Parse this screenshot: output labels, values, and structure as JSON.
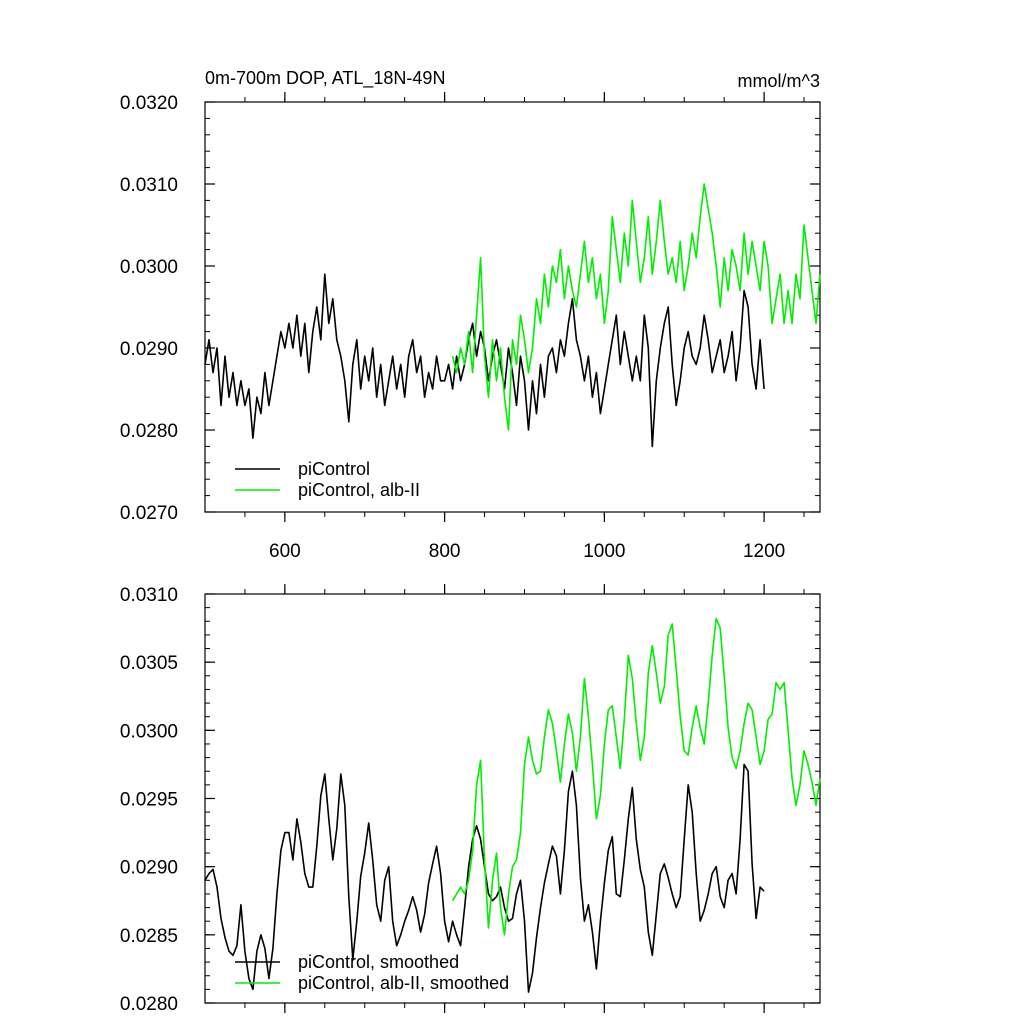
{
  "figure": {
    "title_left": "0m-700m DOP, ATL_18N-49N",
    "title_right": "mmol/m^3"
  },
  "chart_data": [
    {
      "type": "line",
      "title": "0m-700m DOP, ATL_18N-49N",
      "units": "mmol/m^3",
      "xlim": [
        500,
        1270
      ],
      "ylim": [
        0.027,
        0.032
      ],
      "x_ticks": [
        600,
        800,
        1000,
        1200
      ],
      "x_tick_labels": [
        "600",
        "800",
        "1000",
        "1200"
      ],
      "y_ticks": [
        0.027,
        0.028,
        0.029,
        0.03,
        0.031,
        0.032
      ],
      "y_tick_labels": [
        "0.0270",
        "0.0280",
        "0.0290",
        "0.0300",
        "0.0310",
        "0.0320"
      ],
      "legend_position": "bottom-left",
      "grid": false,
      "series": [
        {
          "name": "piControl",
          "color": "#000000",
          "x": [
            500,
            505,
            510,
            515,
            520,
            525,
            530,
            535,
            540,
            545,
            550,
            555,
            560,
            565,
            570,
            575,
            580,
            585,
            590,
            595,
            600,
            605,
            610,
            615,
            620,
            625,
            630,
            635,
            640,
            645,
            650,
            655,
            660,
            665,
            670,
            675,
            680,
            685,
            690,
            695,
            700,
            705,
            710,
            715,
            720,
            725,
            730,
            735,
            740,
            745,
            750,
            755,
            760,
            765,
            770,
            775,
            780,
            785,
            790,
            795,
            800,
            805,
            810,
            815,
            820,
            825,
            830,
            835,
            840,
            845,
            850,
            855,
            860,
            865,
            870,
            875,
            880,
            885,
            890,
            895,
            900,
            905,
            910,
            915,
            920,
            925,
            930,
            935,
            940,
            945,
            950,
            955,
            960,
            965,
            970,
            975,
            980,
            985,
            990,
            995,
            1000,
            1005,
            1010,
            1015,
            1020,
            1025,
            1030,
            1035,
            1040,
            1045,
            1050,
            1055,
            1060,
            1065,
            1070,
            1075,
            1080,
            1085,
            1090,
            1095,
            1100,
            1105,
            1110,
            1115,
            1120,
            1125,
            1130,
            1135,
            1140,
            1145,
            1150,
            1155,
            1160,
            1165,
            1170,
            1175,
            1180,
            1185,
            1190,
            1195,
            1200
          ],
          "y": [
            0.0288,
            0.0291,
            0.0287,
            0.029,
            0.0283,
            0.0289,
            0.0284,
            0.0287,
            0.0283,
            0.0286,
            0.0283,
            0.0285,
            0.0279,
            0.0284,
            0.0282,
            0.0287,
            0.0283,
            0.0286,
            0.0289,
            0.0292,
            0.029,
            0.0293,
            0.029,
            0.0294,
            0.0289,
            0.0293,
            0.0287,
            0.0292,
            0.0295,
            0.0291,
            0.0299,
            0.0293,
            0.0296,
            0.0291,
            0.0289,
            0.0286,
            0.0281,
            0.0288,
            0.0291,
            0.0285,
            0.0289,
            0.0286,
            0.029,
            0.0284,
            0.0288,
            0.0283,
            0.0286,
            0.0289,
            0.0285,
            0.0288,
            0.0284,
            0.0289,
            0.0291,
            0.0287,
            0.0289,
            0.0284,
            0.0287,
            0.0285,
            0.0289,
            0.0286,
            0.0286,
            0.0288,
            0.0285,
            0.0289,
            0.0286,
            0.0288,
            0.0291,
            0.0293,
            0.0289,
            0.0292,
            0.029,
            0.0286,
            0.0289,
            0.0291,
            0.0288,
            0.0285,
            0.029,
            0.0287,
            0.0283,
            0.0289,
            0.0286,
            0.028,
            0.0286,
            0.0282,
            0.0288,
            0.0284,
            0.0289,
            0.029,
            0.0287,
            0.0291,
            0.0289,
            0.0293,
            0.0296,
            0.0291,
            0.0289,
            0.0286,
            0.0289,
            0.0284,
            0.0287,
            0.0282,
            0.0285,
            0.0288,
            0.0291,
            0.0294,
            0.0288,
            0.0292,
            0.0289,
            0.0286,
            0.0289,
            0.0286,
            0.0294,
            0.029,
            0.0278,
            0.0286,
            0.029,
            0.0293,
            0.0295,
            0.0288,
            0.0283,
            0.0286,
            0.029,
            0.0292,
            0.0289,
            0.0288,
            0.029,
            0.0294,
            0.0291,
            0.0287,
            0.0289,
            0.0291,
            0.0287,
            0.0289,
            0.0292,
            0.0286,
            0.029,
            0.0297,
            0.0295,
            0.0288,
            0.0285,
            0.0291,
            0.0285
          ]
        },
        {
          "name": "piControl, alb-II",
          "color": "#00ee00",
          "x": [
            810,
            815,
            820,
            825,
            830,
            835,
            840,
            845,
            850,
            855,
            860,
            865,
            870,
            875,
            880,
            885,
            890,
            895,
            900,
            905,
            910,
            915,
            920,
            925,
            930,
            935,
            940,
            945,
            950,
            955,
            960,
            965,
            970,
            975,
            980,
            985,
            990,
            995,
            1000,
            1005,
            1010,
            1015,
            1020,
            1025,
            1030,
            1035,
            1040,
            1045,
            1050,
            1055,
            1060,
            1065,
            1070,
            1075,
            1080,
            1085,
            1090,
            1095,
            1100,
            1105,
            1110,
            1115,
            1120,
            1125,
            1130,
            1135,
            1140,
            1145,
            1150,
            1155,
            1160,
            1165,
            1170,
            1175,
            1180,
            1185,
            1190,
            1195,
            1200,
            1205,
            1210,
            1215,
            1220,
            1225,
            1230,
            1235,
            1240,
            1245,
            1250,
            1255,
            1260,
            1265,
            1270
          ],
          "y": [
            0.0289,
            0.0287,
            0.029,
            0.0288,
            0.0292,
            0.0287,
            0.0294,
            0.0301,
            0.0289,
            0.0284,
            0.0291,
            0.0286,
            0.029,
            0.0284,
            0.028,
            0.0291,
            0.0288,
            0.0294,
            0.0291,
            0.0287,
            0.029,
            0.0296,
            0.0293,
            0.0299,
            0.0295,
            0.03,
            0.0298,
            0.0302,
            0.0296,
            0.03,
            0.0297,
            0.0295,
            0.0299,
            0.0303,
            0.0298,
            0.0301,
            0.0296,
            0.0299,
            0.0293,
            0.0297,
            0.0306,
            0.0302,
            0.0298,
            0.0304,
            0.03,
            0.0308,
            0.0303,
            0.0298,
            0.0301,
            0.0306,
            0.0299,
            0.0303,
            0.0308,
            0.0303,
            0.0299,
            0.0301,
            0.0298,
            0.0303,
            0.0297,
            0.03,
            0.0304,
            0.0301,
            0.0306,
            0.031,
            0.0307,
            0.0304,
            0.03,
            0.0295,
            0.0301,
            0.0297,
            0.0302,
            0.03,
            0.0297,
            0.0304,
            0.0299,
            0.0303,
            0.03,
            0.0297,
            0.0303,
            0.03,
            0.0293,
            0.0296,
            0.0299,
            0.0293,
            0.0297,
            0.0293,
            0.0299,
            0.0296,
            0.0305,
            0.0301,
            0.0297,
            0.0293,
            0.0299
          ]
        }
      ]
    },
    {
      "type": "line",
      "xlim": [
        500,
        1270
      ],
      "ylim": [
        0.028,
        0.031
      ],
      "x_ticks": [
        600,
        800,
        1000,
        1200
      ],
      "y_ticks": [
        0.028,
        0.0285,
        0.029,
        0.0295,
        0.03,
        0.0305,
        0.031
      ],
      "y_tick_labels": [
        "0.0280",
        "0.0285",
        "0.0290",
        "0.0295",
        "0.0300",
        "0.0305",
        "0.0310"
      ],
      "legend_position": "bottom-left",
      "grid": false,
      "series": [
        {
          "name": "piControl, smoothed",
          "color": "#000000",
          "x": [
            500,
            505,
            510,
            515,
            520,
            525,
            530,
            535,
            540,
            545,
            550,
            555,
            560,
            565,
            570,
            575,
            580,
            585,
            590,
            595,
            600,
            605,
            610,
            615,
            620,
            625,
            630,
            635,
            640,
            645,
            650,
            655,
            660,
            665,
            670,
            675,
            680,
            685,
            690,
            695,
            700,
            705,
            710,
            715,
            720,
            725,
            730,
            735,
            740,
            745,
            750,
            755,
            760,
            765,
            770,
            775,
            780,
            785,
            790,
            795,
            800,
            805,
            810,
            815,
            820,
            825,
            830,
            835,
            840,
            845,
            850,
            855,
            860,
            865,
            870,
            875,
            880,
            885,
            890,
            895,
            900,
            905,
            910,
            915,
            920,
            925,
            930,
            935,
            940,
            945,
            950,
            955,
            960,
            965,
            970,
            975,
            980,
            985,
            990,
            995,
            1000,
            1005,
            1010,
            1015,
            1020,
            1025,
            1030,
            1035,
            1040,
            1045,
            1050,
            1055,
            1060,
            1065,
            1070,
            1075,
            1080,
            1085,
            1090,
            1095,
            1100,
            1105,
            1110,
            1115,
            1120,
            1125,
            1130,
            1135,
            1140,
            1145,
            1150,
            1155,
            1160,
            1165,
            1170,
            1175,
            1180,
            1185,
            1190,
            1195,
            1200
          ],
          "y": [
            0.0289,
            0.02895,
            0.02898,
            0.02885,
            0.02862,
            0.02848,
            0.02838,
            0.02835,
            0.02842,
            0.02872,
            0.02838,
            0.02818,
            0.0281,
            0.02838,
            0.0285,
            0.0284,
            0.02818,
            0.0284,
            0.0288,
            0.02912,
            0.02925,
            0.02925,
            0.02905,
            0.02935,
            0.02918,
            0.02895,
            0.02885,
            0.02885,
            0.02915,
            0.02952,
            0.02968,
            0.02935,
            0.02905,
            0.02928,
            0.02968,
            0.02945,
            0.02878,
            0.02832,
            0.0286,
            0.02893,
            0.0291,
            0.02932,
            0.02905,
            0.02872,
            0.0286,
            0.0289,
            0.029,
            0.0286,
            0.02842,
            0.0285,
            0.0286,
            0.02868,
            0.02878,
            0.02868,
            0.02852,
            0.02865,
            0.02888,
            0.02902,
            0.02915,
            0.02895,
            0.0286,
            0.02845,
            0.0286,
            0.0285,
            0.02842,
            0.0287,
            0.029,
            0.0292,
            0.0293,
            0.0292,
            0.029,
            0.0288,
            0.02875,
            0.02878,
            0.02885,
            0.0287,
            0.0286,
            0.02862,
            0.0288,
            0.0289,
            0.0286,
            0.02808,
            0.02822,
            0.02848,
            0.0287,
            0.02888,
            0.02902,
            0.02915,
            0.02908,
            0.0288,
            0.02912,
            0.02955,
            0.0297,
            0.02945,
            0.02892,
            0.0286,
            0.02872,
            0.02852,
            0.02825,
            0.0286,
            0.02888,
            0.02912,
            0.02922,
            0.0288,
            0.02878,
            0.02905,
            0.02935,
            0.02958,
            0.0292,
            0.02898,
            0.02885,
            0.02852,
            0.02835,
            0.02865,
            0.02895,
            0.02902,
            0.02892,
            0.0288,
            0.0287,
            0.02878,
            0.0292,
            0.0296,
            0.0294,
            0.02895,
            0.0286,
            0.02868,
            0.0288,
            0.02895,
            0.029,
            0.02878,
            0.0287,
            0.0289,
            0.02895,
            0.0288,
            0.0292,
            0.02975,
            0.0297,
            0.02902,
            0.02862,
            0.02885,
            0.02882
          ]
        },
        {
          "name": "piControl, alb-II, smoothed",
          "color": "#00ee00",
          "x": [
            810,
            815,
            820,
            825,
            830,
            835,
            840,
            845,
            850,
            855,
            860,
            865,
            870,
            875,
            880,
            885,
            890,
            895,
            900,
            905,
            910,
            915,
            920,
            925,
            930,
            935,
            940,
            945,
            950,
            955,
            960,
            965,
            970,
            975,
            980,
            985,
            990,
            995,
            1000,
            1005,
            1010,
            1015,
            1020,
            1025,
            1030,
            1035,
            1040,
            1045,
            1050,
            1055,
            1060,
            1065,
            1070,
            1075,
            1080,
            1085,
            1090,
            1095,
            1100,
            1105,
            1110,
            1115,
            1120,
            1125,
            1130,
            1135,
            1140,
            1145,
            1150,
            1155,
            1160,
            1165,
            1170,
            1175,
            1180,
            1185,
            1190,
            1195,
            1200,
            1205,
            1210,
            1215,
            1220,
            1225,
            1230,
            1235,
            1240,
            1245,
            1250,
            1255,
            1260,
            1265,
            1270
          ],
          "y": [
            0.02875,
            0.0288,
            0.02885,
            0.0288,
            0.0289,
            0.02912,
            0.0296,
            0.02978,
            0.02905,
            0.02855,
            0.0289,
            0.0291,
            0.0287,
            0.0285,
            0.0288,
            0.029,
            0.02905,
            0.02925,
            0.02975,
            0.02995,
            0.02978,
            0.02968,
            0.0297,
            0.02995,
            0.03015,
            0.03005,
            0.02985,
            0.02962,
            0.0299,
            0.03012,
            0.02998,
            0.0297,
            0.02995,
            0.03038,
            0.0301,
            0.02975,
            0.02935,
            0.02952,
            0.0299,
            0.03015,
            0.03018,
            0.02995,
            0.02972,
            0.03008,
            0.03055,
            0.03038,
            0.03005,
            0.02978,
            0.02995,
            0.03042,
            0.03062,
            0.03042,
            0.0302,
            0.03032,
            0.0307,
            0.03078,
            0.03045,
            0.0301,
            0.02985,
            0.02982,
            0.03002,
            0.03018,
            0.03002,
            0.0299,
            0.0302,
            0.03055,
            0.03082,
            0.03075,
            0.0304,
            0.03002,
            0.0298,
            0.02972,
            0.02985,
            0.03005,
            0.0302,
            0.03015,
            0.02995,
            0.02975,
            0.02985,
            0.03008,
            0.03012,
            0.03035,
            0.0303,
            0.03035,
            0.03,
            0.02965,
            0.02945,
            0.0296,
            0.02985,
            0.02975,
            0.02962,
            0.02945,
            0.02965
          ]
        }
      ]
    }
  ]
}
